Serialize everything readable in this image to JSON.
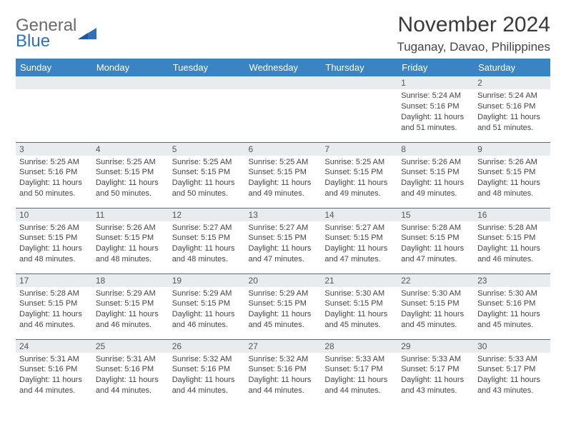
{
  "brand": {
    "general": "General",
    "blue": "Blue"
  },
  "header": {
    "month_title": "November 2024",
    "location": "Tuganay, Davao, Philippines"
  },
  "colors": {
    "header_bg": "#3b84c4",
    "row_border": "#3b6fa0",
    "daynum_bg": "#e9ecef",
    "brand_gray": "#6a6a6a",
    "brand_blue": "#2d72b8"
  },
  "weekdays": [
    "Sunday",
    "Monday",
    "Tuesday",
    "Wednesday",
    "Thursday",
    "Friday",
    "Saturday"
  ],
  "weeks": [
    [
      {
        "day": "",
        "lines": []
      },
      {
        "day": "",
        "lines": []
      },
      {
        "day": "",
        "lines": []
      },
      {
        "day": "",
        "lines": []
      },
      {
        "day": "",
        "lines": []
      },
      {
        "day": "1",
        "lines": [
          "Sunrise: 5:24 AM",
          "Sunset: 5:16 PM",
          "Daylight: 11 hours and 51 minutes."
        ]
      },
      {
        "day": "2",
        "lines": [
          "Sunrise: 5:24 AM",
          "Sunset: 5:16 PM",
          "Daylight: 11 hours and 51 minutes."
        ]
      }
    ],
    [
      {
        "day": "3",
        "lines": [
          "Sunrise: 5:25 AM",
          "Sunset: 5:16 PM",
          "Daylight: 11 hours and 50 minutes."
        ]
      },
      {
        "day": "4",
        "lines": [
          "Sunrise: 5:25 AM",
          "Sunset: 5:15 PM",
          "Daylight: 11 hours and 50 minutes."
        ]
      },
      {
        "day": "5",
        "lines": [
          "Sunrise: 5:25 AM",
          "Sunset: 5:15 PM",
          "Daylight: 11 hours and 50 minutes."
        ]
      },
      {
        "day": "6",
        "lines": [
          "Sunrise: 5:25 AM",
          "Sunset: 5:15 PM",
          "Daylight: 11 hours and 49 minutes."
        ]
      },
      {
        "day": "7",
        "lines": [
          "Sunrise: 5:25 AM",
          "Sunset: 5:15 PM",
          "Daylight: 11 hours and 49 minutes."
        ]
      },
      {
        "day": "8",
        "lines": [
          "Sunrise: 5:26 AM",
          "Sunset: 5:15 PM",
          "Daylight: 11 hours and 49 minutes."
        ]
      },
      {
        "day": "9",
        "lines": [
          "Sunrise: 5:26 AM",
          "Sunset: 5:15 PM",
          "Daylight: 11 hours and 48 minutes."
        ]
      }
    ],
    [
      {
        "day": "10",
        "lines": [
          "Sunrise: 5:26 AM",
          "Sunset: 5:15 PM",
          "Daylight: 11 hours and 48 minutes."
        ]
      },
      {
        "day": "11",
        "lines": [
          "Sunrise: 5:26 AM",
          "Sunset: 5:15 PM",
          "Daylight: 11 hours and 48 minutes."
        ]
      },
      {
        "day": "12",
        "lines": [
          "Sunrise: 5:27 AM",
          "Sunset: 5:15 PM",
          "Daylight: 11 hours and 48 minutes."
        ]
      },
      {
        "day": "13",
        "lines": [
          "Sunrise: 5:27 AM",
          "Sunset: 5:15 PM",
          "Daylight: 11 hours and 47 minutes."
        ]
      },
      {
        "day": "14",
        "lines": [
          "Sunrise: 5:27 AM",
          "Sunset: 5:15 PM",
          "Daylight: 11 hours and 47 minutes."
        ]
      },
      {
        "day": "15",
        "lines": [
          "Sunrise: 5:28 AM",
          "Sunset: 5:15 PM",
          "Daylight: 11 hours and 47 minutes."
        ]
      },
      {
        "day": "16",
        "lines": [
          "Sunrise: 5:28 AM",
          "Sunset: 5:15 PM",
          "Daylight: 11 hours and 46 minutes."
        ]
      }
    ],
    [
      {
        "day": "17",
        "lines": [
          "Sunrise: 5:28 AM",
          "Sunset: 5:15 PM",
          "Daylight: 11 hours and 46 minutes."
        ]
      },
      {
        "day": "18",
        "lines": [
          "Sunrise: 5:29 AM",
          "Sunset: 5:15 PM",
          "Daylight: 11 hours and 46 minutes."
        ]
      },
      {
        "day": "19",
        "lines": [
          "Sunrise: 5:29 AM",
          "Sunset: 5:15 PM",
          "Daylight: 11 hours and 46 minutes."
        ]
      },
      {
        "day": "20",
        "lines": [
          "Sunrise: 5:29 AM",
          "Sunset: 5:15 PM",
          "Daylight: 11 hours and 45 minutes."
        ]
      },
      {
        "day": "21",
        "lines": [
          "Sunrise: 5:30 AM",
          "Sunset: 5:15 PM",
          "Daylight: 11 hours and 45 minutes."
        ]
      },
      {
        "day": "22",
        "lines": [
          "Sunrise: 5:30 AM",
          "Sunset: 5:15 PM",
          "Daylight: 11 hours and 45 minutes."
        ]
      },
      {
        "day": "23",
        "lines": [
          "Sunrise: 5:30 AM",
          "Sunset: 5:16 PM",
          "Daylight: 11 hours and 45 minutes."
        ]
      }
    ],
    [
      {
        "day": "24",
        "lines": [
          "Sunrise: 5:31 AM",
          "Sunset: 5:16 PM",
          "Daylight: 11 hours and 44 minutes."
        ]
      },
      {
        "day": "25",
        "lines": [
          "Sunrise: 5:31 AM",
          "Sunset: 5:16 PM",
          "Daylight: 11 hours and 44 minutes."
        ]
      },
      {
        "day": "26",
        "lines": [
          "Sunrise: 5:32 AM",
          "Sunset: 5:16 PM",
          "Daylight: 11 hours and 44 minutes."
        ]
      },
      {
        "day": "27",
        "lines": [
          "Sunrise: 5:32 AM",
          "Sunset: 5:16 PM",
          "Daylight: 11 hours and 44 minutes."
        ]
      },
      {
        "day": "28",
        "lines": [
          "Sunrise: 5:33 AM",
          "Sunset: 5:17 PM",
          "Daylight: 11 hours and 44 minutes."
        ]
      },
      {
        "day": "29",
        "lines": [
          "Sunrise: 5:33 AM",
          "Sunset: 5:17 PM",
          "Daylight: 11 hours and 43 minutes."
        ]
      },
      {
        "day": "30",
        "lines": [
          "Sunrise: 5:33 AM",
          "Sunset: 5:17 PM",
          "Daylight: 11 hours and 43 minutes."
        ]
      }
    ]
  ]
}
